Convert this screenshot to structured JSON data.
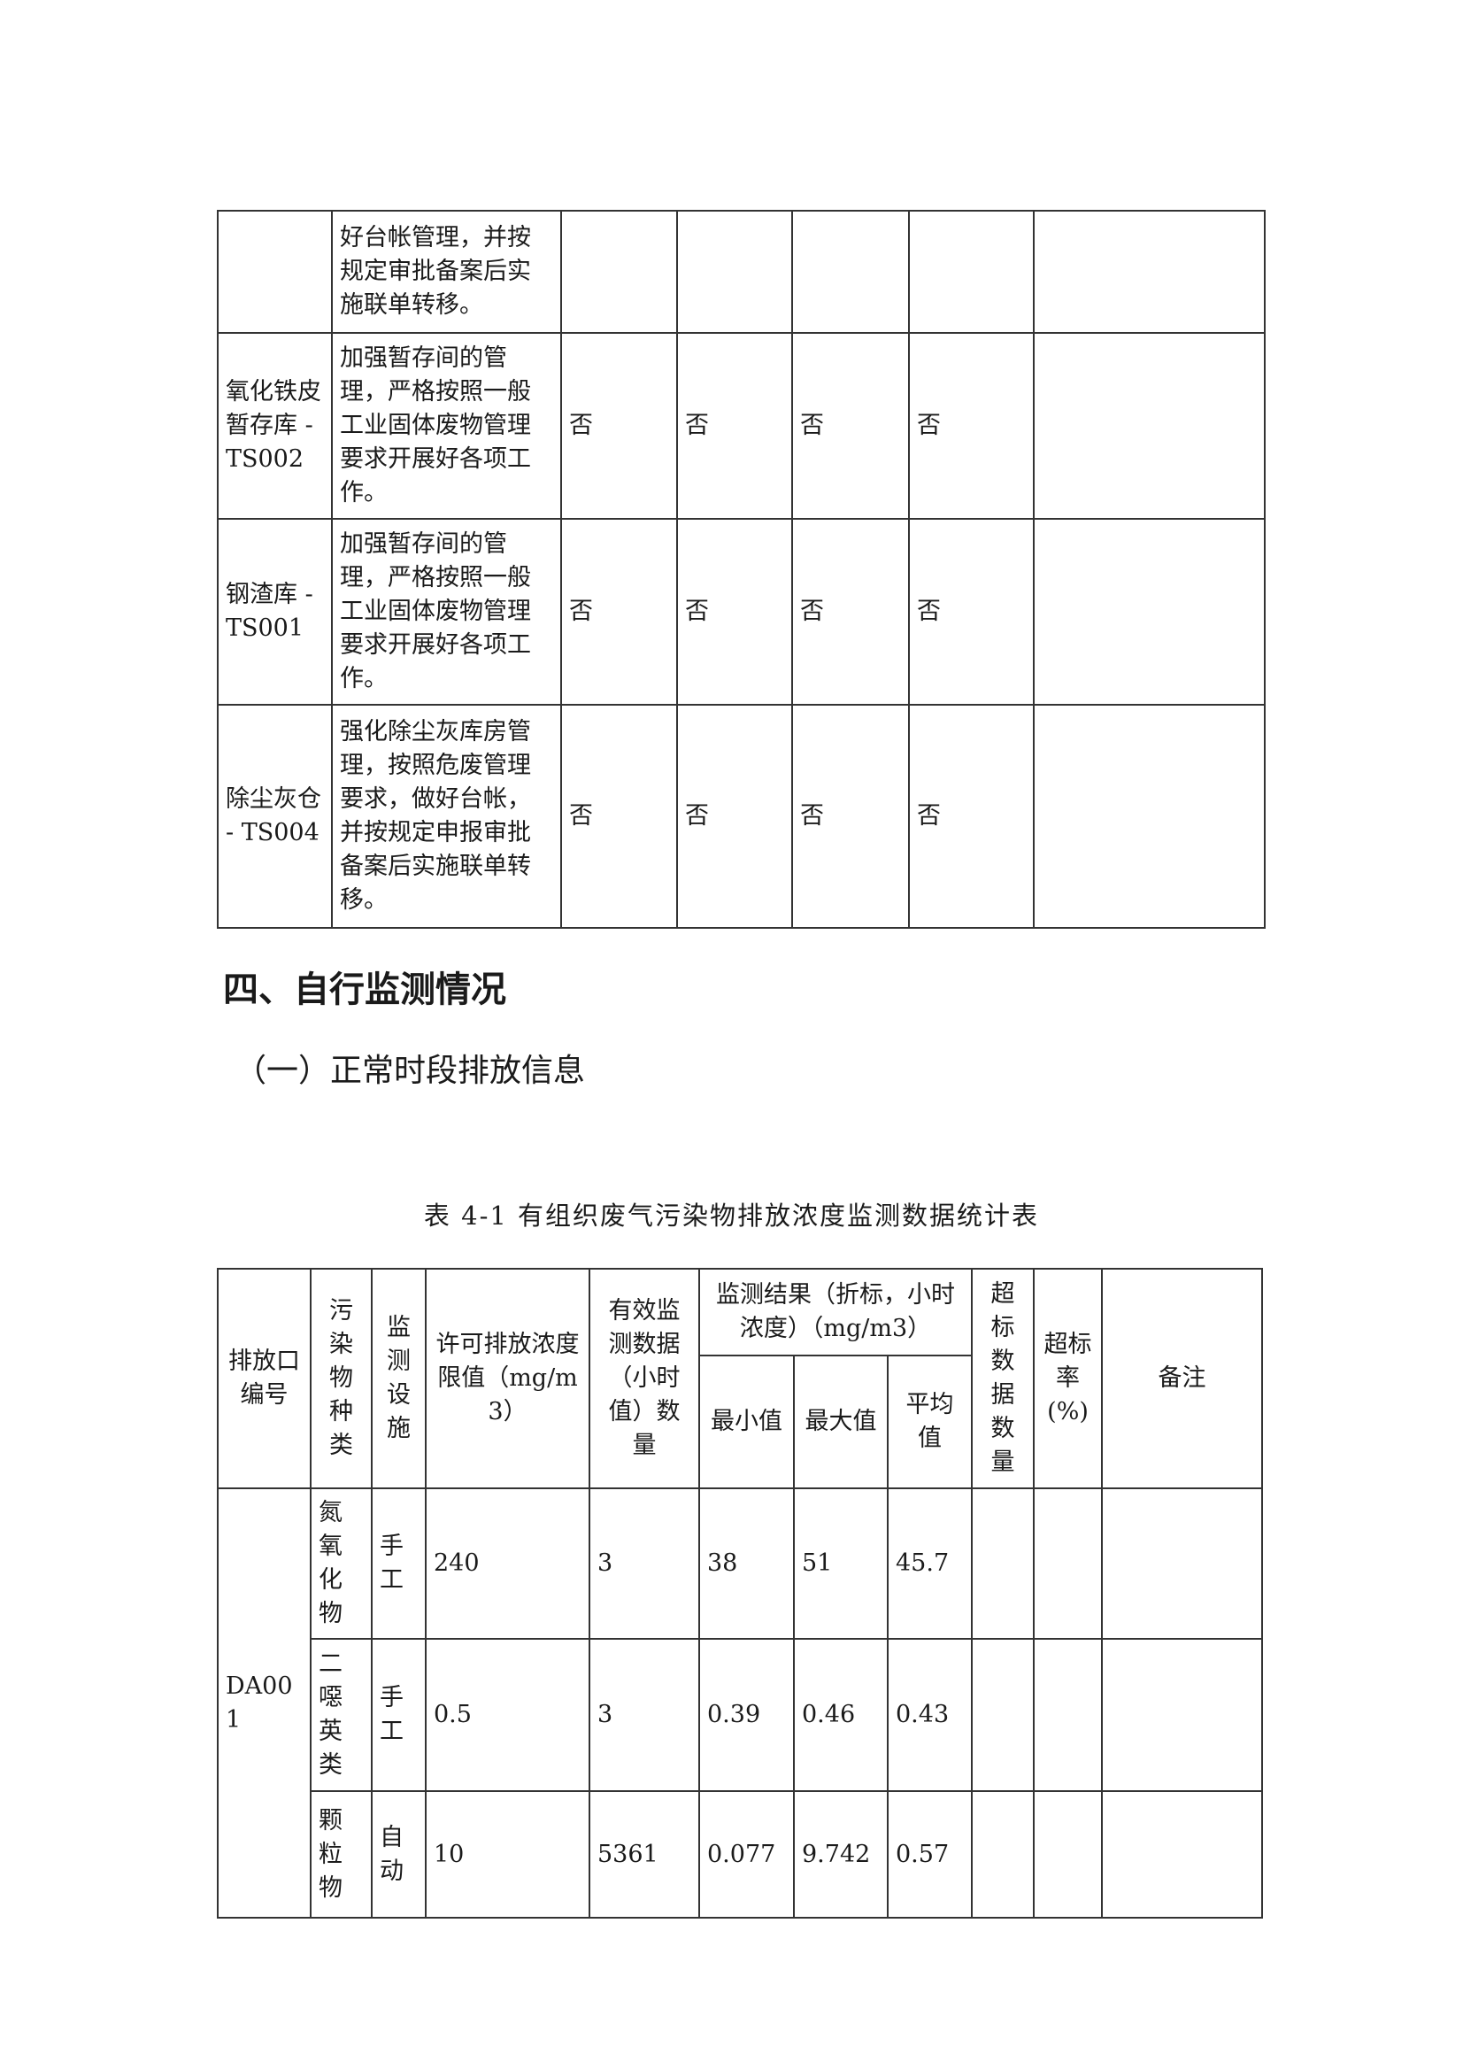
{
  "table_top": {
    "rows": [
      {
        "name": "",
        "measure": "好台帐管理，并按规定审批备案后实施联单转移。",
        "c1": "",
        "c2": "",
        "c3": "",
        "c4": "",
        "c5": ""
      },
      {
        "name": "氧化铁皮暂存库 - TS002",
        "measure": "加强暂存间的管理，严格按照一般工业固体废物管理要求开展好各项工作。",
        "c1": "否",
        "c2": "否",
        "c3": "否",
        "c4": "否",
        "c5": ""
      },
      {
        "name": "钢渣库 - TS001",
        "measure": "加强暂存间的管理，严格按照一般工业固体废物管理要求开展好各项工作。",
        "c1": "否",
        "c2": "否",
        "c3": "否",
        "c4": "否",
        "c5": ""
      },
      {
        "name": "除尘灰仓 - TS004",
        "measure": "强化除尘灰库房管理，按照危废管理要求，做好台帐，并按规定申报审批备案后实施联单转移。",
        "c1": "否",
        "c2": "否",
        "c3": "否",
        "c4": "否",
        "c5": ""
      }
    ]
  },
  "section_heading": "四、自行监测情况",
  "subsection_heading": "（一）正常时段排放信息",
  "table_caption": "表 4-1 有组织废气污染物排放浓度监测数据统计表",
  "table_41": {
    "headers": {
      "outlet": "排放口编号",
      "pollutant": "污染物种类",
      "facility": "监测设施",
      "limit": "许可排放浓度限值（mg/m3）",
      "count": "有效监测数据（小时值）数量",
      "result": "监测结果（折标，小时浓度）（mg/m3）",
      "min": "最小值",
      "max": "最大值",
      "avg": "平均值",
      "exceed_count": "超标数据数量",
      "exceed_rate": "超标率(%)",
      "remark": "备注"
    },
    "outlet": "DA001",
    "rows": [
      {
        "pollutant": "氮氧化物",
        "facility": "手工",
        "limit": "240",
        "count": "3",
        "min": "38",
        "max": "51",
        "avg": "45.7",
        "exceed_count": "",
        "exceed_rate": "",
        "remark": ""
      },
      {
        "pollutant": "二噁英类",
        "facility": "手工",
        "limit": "0.5",
        "count": "3",
        "min": "0.39",
        "max": "0.46",
        "avg": "0.43",
        "exceed_count": "",
        "exceed_rate": "",
        "remark": ""
      },
      {
        "pollutant": "颗粒物",
        "facility": "自动",
        "limit": "10",
        "count": "5361",
        "min": "0.077",
        "max": "9.742",
        "avg": "0.57",
        "exceed_count": "",
        "exceed_rate": "",
        "remark": ""
      }
    ]
  }
}
